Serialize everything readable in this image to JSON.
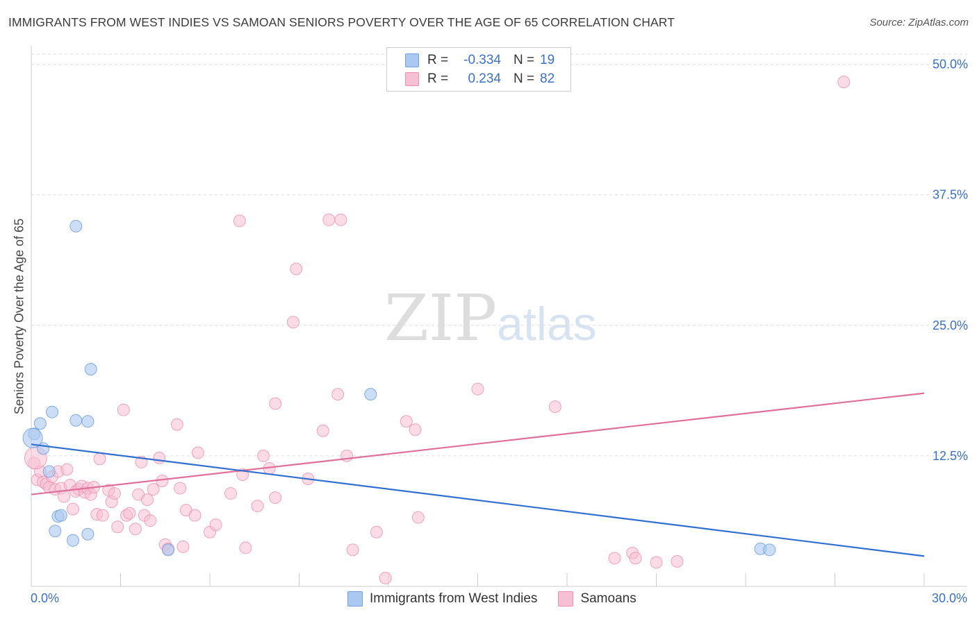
{
  "title": "IMMIGRANTS FROM WEST INDIES VS SAMOAN SENIORS POVERTY OVER THE AGE OF 65 CORRELATION CHART",
  "source": "Source: ZipAtlas.com",
  "watermark": {
    "zip": "ZIP",
    "atlas": "atlas"
  },
  "legend": {
    "series1": {
      "r_label": "R =",
      "r_value": "-0.334",
      "n_label": "N =",
      "n_value": "19"
    },
    "series2": {
      "r_label": "R =",
      "r_value": "0.234",
      "n_label": "N =",
      "n_value": "82"
    }
  },
  "colors": {
    "blue_fill": "#aac8f0",
    "blue_stroke": "#6f9ee0",
    "blue_line": "#2f6fd0",
    "pink_fill": "#f7bfd2",
    "pink_stroke": "#ec8fb0",
    "pink_line": "#e0709a",
    "grid": "#dddddd",
    "tick_label": "#3a70c8"
  },
  "chart_data": {
    "type": "scatter",
    "title": "IMMIGRANTS FROM WEST INDIES VS SAMOAN SENIORS POVERTY OVER THE AGE OF 65 CORRELATION CHART",
    "xlabel": "",
    "ylabel": "Seniors Poverty Over the Age of 65",
    "xlim": [
      0,
      30
    ],
    "ylim": [
      0,
      51.5
    ],
    "x_tick_labels": [
      "0.0%",
      "30.0%"
    ],
    "y_ticks": [
      12.5,
      25.0,
      37.5,
      50.0
    ],
    "y_tick_labels": [
      "12.5%",
      "25.0%",
      "37.5%",
      "50.0%"
    ],
    "grid": true,
    "series": [
      {
        "name": "Immigrants from West Indies",
        "color": "#aac8f0",
        "points": [
          [
            0.1,
            14.6
          ],
          [
            0.3,
            15.6
          ],
          [
            0.4,
            13.2
          ],
          [
            0.6,
            11.0
          ],
          [
            0.7,
            16.7
          ],
          [
            0.8,
            5.3
          ],
          [
            0.9,
            6.7
          ],
          [
            1.0,
            6.8
          ],
          [
            1.4,
            4.4
          ],
          [
            1.5,
            15.9
          ],
          [
            1.5,
            34.5
          ],
          [
            1.9,
            5.0
          ],
          [
            1.9,
            15.8
          ],
          [
            2.0,
            20.8
          ],
          [
            4.6,
            3.5
          ],
          [
            11.4,
            18.4
          ],
          [
            24.5,
            3.6
          ],
          [
            24.8,
            3.5
          ],
          [
            0.05,
            14.2
          ]
        ],
        "trend": {
          "x": [
            0,
            30
          ],
          "y": [
            13.6,
            2.9
          ]
        }
      },
      {
        "name": "Samoans",
        "color": "#f7bfd2",
        "points": [
          [
            0.1,
            11.8
          ],
          [
            0.2,
            10.2
          ],
          [
            0.3,
            11.0
          ],
          [
            0.4,
            10.0
          ],
          [
            0.5,
            9.8
          ],
          [
            0.6,
            9.5
          ],
          [
            0.7,
            10.5
          ],
          [
            0.8,
            9.3
          ],
          [
            0.9,
            11.0
          ],
          [
            1.0,
            9.4
          ],
          [
            1.1,
            8.6
          ],
          [
            1.2,
            11.2
          ],
          [
            1.3,
            9.7
          ],
          [
            1.4,
            7.4
          ],
          [
            1.5,
            9.1
          ],
          [
            1.6,
            9.3
          ],
          [
            1.7,
            9.6
          ],
          [
            1.8,
            9.0
          ],
          [
            1.9,
            9.4
          ],
          [
            2.0,
            8.8
          ],
          [
            2.1,
            9.5
          ],
          [
            2.2,
            6.9
          ],
          [
            2.3,
            12.2
          ],
          [
            2.4,
            6.8
          ],
          [
            2.6,
            9.2
          ],
          [
            2.7,
            8.1
          ],
          [
            2.8,
            8.9
          ],
          [
            2.9,
            5.7
          ],
          [
            3.1,
            16.9
          ],
          [
            3.2,
            6.8
          ],
          [
            3.3,
            7.0
          ],
          [
            3.5,
            5.5
          ],
          [
            3.6,
            8.8
          ],
          [
            3.7,
            11.9
          ],
          [
            3.8,
            6.8
          ],
          [
            3.9,
            8.3
          ],
          [
            4.0,
            6.3
          ],
          [
            4.1,
            9.3
          ],
          [
            4.3,
            12.3
          ],
          [
            4.4,
            10.1
          ],
          [
            4.5,
            4.0
          ],
          [
            4.6,
            3.6
          ],
          [
            4.9,
            15.5
          ],
          [
            5.0,
            9.4
          ],
          [
            5.1,
            3.8
          ],
          [
            5.2,
            7.3
          ],
          [
            5.5,
            6.8
          ],
          [
            5.6,
            12.8
          ],
          [
            6.0,
            5.2
          ],
          [
            6.2,
            5.9
          ],
          [
            6.7,
            8.9
          ],
          [
            7.0,
            35.0
          ],
          [
            7.1,
            10.7
          ],
          [
            7.2,
            3.7
          ],
          [
            7.6,
            7.7
          ],
          [
            7.8,
            12.5
          ],
          [
            8.0,
            11.3
          ],
          [
            8.2,
            8.5
          ],
          [
            8.2,
            17.5
          ],
          [
            8.8,
            25.3
          ],
          [
            8.9,
            30.4
          ],
          [
            9.3,
            10.3
          ],
          [
            9.8,
            14.9
          ],
          [
            10.0,
            35.1
          ],
          [
            10.3,
            18.4
          ],
          [
            10.4,
            35.1
          ],
          [
            10.6,
            12.5
          ],
          [
            10.8,
            3.5
          ],
          [
            11.6,
            5.2
          ],
          [
            11.9,
            0.8
          ],
          [
            12.6,
            15.8
          ],
          [
            12.9,
            15.0
          ],
          [
            13.0,
            6.6
          ],
          [
            15.0,
            18.9
          ],
          [
            17.6,
            17.2
          ],
          [
            19.6,
            2.7
          ],
          [
            20.2,
            3.2
          ],
          [
            20.3,
            2.7
          ],
          [
            21.0,
            2.3
          ],
          [
            21.7,
            2.4
          ],
          [
            27.3,
            48.3
          ],
          [
            0.15,
            12.3
          ]
        ],
        "trend": {
          "x": [
            0,
            30
          ],
          "y": [
            8.8,
            18.5
          ]
        }
      }
    ]
  },
  "bottom_legend": [
    "Immigrants from West Indies",
    "Samoans"
  ]
}
